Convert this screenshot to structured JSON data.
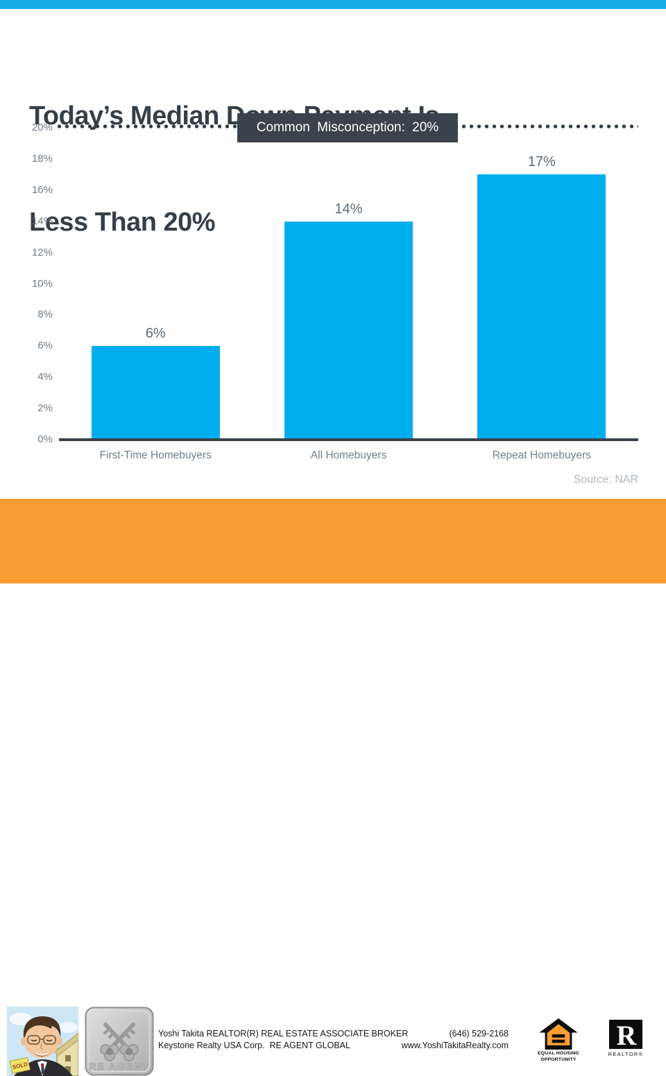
{
  "page": {
    "title_line1": "Today’s Median Down Payment Is",
    "title_line2": "Less Than 20%"
  },
  "chart_data": {
    "type": "bar",
    "title": "Today’s Median Down Payment Is Less Than 20%",
    "categories": [
      "First-Time Homebuyers",
      "All Homebuyers",
      "Repeat Homebuyers"
    ],
    "values": [
      6,
      14,
      17
    ],
    "value_labels": [
      "6%",
      "14%",
      "17%"
    ],
    "xlabel": "",
    "ylabel": "",
    "ylim": [
      0,
      20
    ],
    "ytick_step": 2,
    "ytick_labels": [
      "0%",
      "2%",
      "4%",
      "6%",
      "8%",
      "10%",
      "12%",
      "14%",
      "16%",
      "18%",
      "20%"
    ],
    "grid": "off",
    "legend": "none",
    "bar_color": "#00AEEF",
    "annotation": {
      "text": "Common Misconception: 20%",
      "y": 20,
      "style": "horizontal dotted line at 20% with dark label box"
    },
    "source": "Source: NAR"
  },
  "annotation": {
    "label": "Common Misconception: 20%"
  },
  "source_label": "Source: NAR",
  "footer": {
    "line1_left": "Yoshi Takita REALTOR(R) REAL ESTATE ASSOCIATE BROKER",
    "line2_left": "Keystone Realty USA Corp.  RE AGENT GLOBAL",
    "line1_right": "(646) 529-2168",
    "line2_right": "www.YoshiTakitaRealty.com",
    "badge_label": "RE AGENT",
    "sold_sign": "SOLD",
    "eho_line1": "EQUAL HOUSING",
    "eho_line2": "OPPORTUNITY",
    "realtor_letter": "R",
    "realtor_label": "REALTOR®"
  },
  "colors": {
    "accent_cyan": "#00AEEF",
    "top_strip": "#18ACE8",
    "charcoal": "#363F48",
    "label_box": "#3A434D",
    "footer_orange": "#F99C33"
  }
}
